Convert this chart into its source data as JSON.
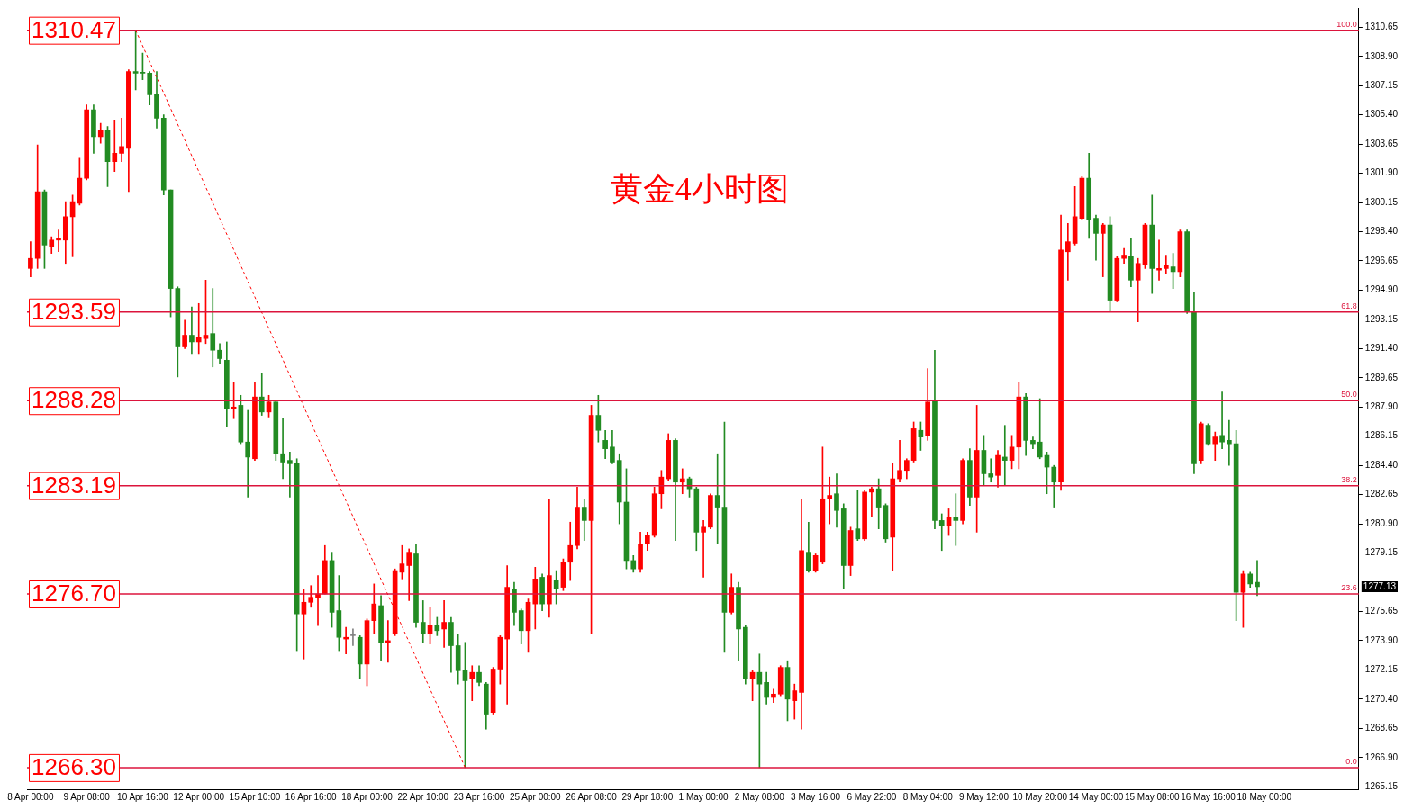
{
  "chart_data": {
    "type": "candlestick",
    "title": "黄金4小时图",
    "categories": [
      "8 Apr 00:00",
      null,
      null,
      null,
      null,
      null,
      null,
      null,
      "9 Apr 08:00",
      null,
      null,
      null,
      null,
      null,
      null,
      null,
      "10 Apr 16:00",
      null,
      null,
      null,
      null,
      null,
      null,
      null,
      "12 Apr 00:00",
      null,
      null,
      null,
      null,
      null,
      null,
      null,
      "15 Apr 10:00",
      null,
      null,
      null,
      null,
      null,
      null,
      null,
      "16 Apr 16:00",
      null,
      null,
      null,
      null,
      null,
      null,
      null,
      "18 Apr 00:00",
      null,
      null,
      null,
      null,
      null,
      null,
      null,
      "22 Apr 10:00",
      null,
      null,
      null,
      null,
      null,
      null,
      null,
      "23 Apr 16:00",
      null,
      null,
      null,
      null,
      null,
      null,
      null,
      "25 Apr 00:00",
      null,
      null,
      null,
      null,
      null,
      null,
      null,
      "26 Apr 08:00",
      null,
      null,
      null,
      null,
      null,
      null,
      null,
      "29 Apr 18:00",
      null,
      null,
      null,
      null,
      null,
      null,
      null,
      "1 May 00:00",
      null,
      null,
      null,
      null,
      null,
      null,
      null,
      "2 May 08:00",
      null,
      null,
      null,
      null,
      null,
      null,
      null,
      "3 May 16:00",
      null,
      null,
      null,
      null,
      null,
      null,
      null,
      "6 May 22:00",
      null,
      null,
      null,
      null,
      null,
      null,
      null,
      "8 May 04:00",
      null,
      null,
      null,
      null,
      null,
      null,
      null,
      "9 May 12:00",
      null,
      null,
      null,
      null,
      null,
      null,
      null,
      "10 May 20:00",
      null,
      null,
      null,
      null,
      null,
      null,
      null,
      "14 May 00:00",
      null,
      null,
      null,
      null,
      null,
      null,
      null,
      "15 May 08:00",
      null,
      null,
      null,
      null,
      null,
      null,
      null,
      "16 May 16:00",
      null,
      null,
      null,
      null,
      null,
      null,
      null,
      "18 May 00:00",
      null,
      null,
      null,
      null,
      null,
      null,
      null,
      null,
      null,
      null,
      null,
      null,
      null
    ],
    "ohlc": [
      [
        1296.2,
        1297.8,
        1295.7,
        1296.8
      ],
      [
        1296.8,
        1303.6,
        1296.2,
        1300.8
      ],
      [
        1300.8,
        1300.9,
        1296.2,
        1297.6
      ],
      [
        1297.5,
        1298.1,
        1297.1,
        1297.9
      ],
      [
        1297.9,
        1298.5,
        1297.2,
        1298.0
      ],
      [
        1297.9,
        1300.2,
        1296.5,
        1299.3
      ],
      [
        1299.3,
        1300.6,
        1296.9,
        1300.2
      ],
      [
        1300.1,
        1302.8,
        1300.0,
        1301.6
      ],
      [
        1301.6,
        1306.0,
        1301.5,
        1305.7
      ],
      [
        1305.7,
        1306.0,
        1303.1,
        1304.1
      ],
      [
        1304.1,
        1304.9,
        1303.7,
        1304.5
      ],
      [
        1304.5,
        1304.7,
        1301.1,
        1302.6
      ],
      [
        1302.6,
        1305.1,
        1302.0,
        1303.1
      ],
      [
        1303.1,
        1305.2,
        1302.6,
        1303.5
      ],
      [
        1303.4,
        1308.1,
        1300.8,
        1308.0
      ],
      [
        1308.0,
        1310.47,
        1306.9,
        1307.9
      ],
      [
        1307.9,
        1309.1,
        1307.5,
        1307.9
      ],
      [
        1307.9,
        1308.0,
        1306.0,
        1306.6
      ],
      [
        1306.6,
        1308.0,
        1304.6,
        1305.2
      ],
      [
        1305.2,
        1305.4,
        1300.6,
        1300.9
      ],
      [
        1300.9,
        1300.9,
        1293.3,
        1295.0
      ],
      [
        1295.0,
        1295.1,
        1289.7,
        1291.5
      ],
      [
        1291.5,
        1293.1,
        1291.4,
        1292.2
      ],
      [
        1292.2,
        1293.9,
        1291.1,
        1291.8
      ],
      [
        1291.8,
        1294.1,
        1291.1,
        1292.1
      ],
      [
        1292.0,
        1295.5,
        1291.7,
        1292.2
      ],
      [
        1292.3,
        1295.0,
        1290.3,
        1291.3
      ],
      [
        1291.3,
        1291.7,
        1290.5,
        1290.8
      ],
      [
        1290.7,
        1291.8,
        1286.7,
        1287.8
      ],
      [
        1287.8,
        1289.4,
        1287.2,
        1287.9
      ],
      [
        1288.0,
        1288.6,
        1285.7,
        1285.8
      ],
      [
        1285.8,
        1287.7,
        1282.5,
        1284.9
      ],
      [
        1284.8,
        1289.4,
        1284.7,
        1288.5
      ],
      [
        1288.5,
        1289.9,
        1287.4,
        1287.6
      ],
      [
        1287.6,
        1288.6,
        1287.3,
        1288.2
      ],
      [
        1288.2,
        1288.3,
        1284.7,
        1285.1
      ],
      [
        1285.1,
        1287.2,
        1283.6,
        1284.6
      ],
      [
        1284.7,
        1285.2,
        1282.5,
        1284.5
      ],
      [
        1284.5,
        1284.8,
        1273.3,
        1275.5
      ],
      [
        1275.5,
        1277.0,
        1272.8,
        1276.2
      ],
      [
        1276.2,
        1277.2,
        1275.9,
        1276.5
      ],
      [
        1276.5,
        1277.8,
        1274.8,
        1276.7
      ],
      [
        1276.7,
        1279.6,
        1276.7,
        1278.7
      ],
      [
        1278.7,
        1279.2,
        1274.7,
        1275.6
      ],
      [
        1275.7,
        1277.8,
        1273.3,
        1274.1
      ],
      [
        1274.0,
        1274.7,
        1273.1,
        1274.1
      ],
      [
        1274.2,
        1274.6,
        1273.6,
        1274.2
      ],
      [
        1274.1,
        1274.2,
        1271.6,
        1272.5
      ],
      [
        1272.5,
        1275.2,
        1271.2,
        1275.1
      ],
      [
        1275.1,
        1277.3,
        1274.3,
        1276.1
      ],
      [
        1276.0,
        1276.6,
        1272.7,
        1273.8
      ],
      [
        1273.8,
        1275.1,
        1272.6,
        1273.9
      ],
      [
        1274.3,
        1278.2,
        1274.2,
        1278.1
      ],
      [
        1278.0,
        1279.6,
        1277.6,
        1278.5
      ],
      [
        1278.4,
        1279.4,
        1276.3,
        1279.2
      ],
      [
        1279.1,
        1279.7,
        1274.7,
        1275.0
      ],
      [
        1275.0,
        1276.3,
        1273.8,
        1274.3
      ],
      [
        1274.3,
        1275.9,
        1273.7,
        1274.8
      ],
      [
        1274.8,
        1275.3,
        1274.2,
        1274.5
      ],
      [
        1274.6,
        1276.3,
        1273.5,
        1275.0
      ],
      [
        1275.0,
        1275.3,
        1272.0,
        1273.6
      ],
      [
        1273.6,
        1274.3,
        1271.3,
        1272.1
      ],
      [
        1272.1,
        1273.8,
        1266.3,
        1271.5
      ],
      [
        1271.6,
        1272.4,
        1270.3,
        1272.0
      ],
      [
        1272.0,
        1272.4,
        1271.2,
        1271.4
      ],
      [
        1271.3,
        1271.4,
        1268.6,
        1269.5
      ],
      [
        1269.6,
        1272.3,
        1269.5,
        1272.2
      ],
      [
        1272.2,
        1274.2,
        1271.3,
        1274.1
      ],
      [
        1274.0,
        1278.4,
        1270.1,
        1277.1
      ],
      [
        1277.0,
        1277.4,
        1274.8,
        1275.6
      ],
      [
        1275.7,
        1275.8,
        1273.7,
        1274.5
      ],
      [
        1274.5,
        1276.4,
        1273.2,
        1276.2
      ],
      [
        1276.1,
        1278.3,
        1274.6,
        1277.6
      ],
      [
        1277.7,
        1277.9,
        1275.7,
        1276.1
      ],
      [
        1276.1,
        1282.4,
        1275.3,
        1277.8
      ],
      [
        1277.5,
        1278.1,
        1276.1,
        1277.0
      ],
      [
        1277.1,
        1278.8,
        1276.9,
        1278.6
      ],
      [
        1278.6,
        1281.0,
        1277.5,
        1279.6
      ],
      [
        1279.6,
        1283.1,
        1279.4,
        1281.9
      ],
      [
        1281.9,
        1282.4,
        1279.9,
        1281.1
      ],
      [
        1281.1,
        1288.0,
        1274.3,
        1287.4
      ],
      [
        1287.4,
        1288.6,
        1285.8,
        1286.5
      ],
      [
        1285.9,
        1286.5,
        1284.8,
        1285.4
      ],
      [
        1285.5,
        1286.5,
        1284.5,
        1284.6
      ],
      [
        1284.7,
        1285.1,
        1280.9,
        1282.2
      ],
      [
        1282.2,
        1284.2,
        1278.2,
        1278.7
      ],
      [
        1278.7,
        1279.0,
        1278.0,
        1278.2
      ],
      [
        1278.2,
        1280.4,
        1278.0,
        1279.7
      ],
      [
        1279.7,
        1280.4,
        1279.3,
        1280.2
      ],
      [
        1280.2,
        1283.1,
        1280.1,
        1282.7
      ],
      [
        1282.7,
        1284.1,
        1281.8,
        1283.7
      ],
      [
        1283.6,
        1286.3,
        1283.5,
        1285.9
      ],
      [
        1285.9,
        1286.0,
        1279.9,
        1283.4
      ],
      [
        1283.4,
        1284.2,
        1282.7,
        1283.6
      ],
      [
        1283.6,
        1283.7,
        1282.5,
        1283.0
      ],
      [
        1283.0,
        1283.1,
        1279.3,
        1280.4
      ],
      [
        1280.4,
        1281.1,
        1277.7,
        1280.7
      ],
      [
        1280.7,
        1282.7,
        1280.6,
        1282.6
      ],
      [
        1282.6,
        1285.1,
        1279.7,
        1281.9
      ],
      [
        1281.9,
        1287.0,
        1273.2,
        1275.6
      ],
      [
        1275.6,
        1277.9,
        1275.5,
        1277.1
      ],
      [
        1277.1,
        1277.4,
        1272.7,
        1274.6
      ],
      [
        1274.7,
        1274.8,
        1271.3,
        1271.6
      ],
      [
        1271.6,
        1272.1,
        1270.3,
        1272.0
      ],
      [
        1272.0,
        1273.1,
        1266.3,
        1271.3
      ],
      [
        1271.4,
        1272.0,
        1270.1,
        1270.5
      ],
      [
        1270.5,
        1271.0,
        1270.2,
        1270.7
      ],
      [
        1270.7,
        1272.4,
        1270.6,
        1272.3
      ],
      [
        1272.3,
        1272.7,
        1269.1,
        1270.4
      ],
      [
        1270.3,
        1271.3,
        1269.2,
        1270.9
      ],
      [
        1270.8,
        1282.4,
        1268.6,
        1279.3
      ],
      [
        1279.2,
        1281.0,
        1278.0,
        1278.1
      ],
      [
        1278.1,
        1279.1,
        1278.0,
        1279.0
      ],
      [
        1278.6,
        1285.5,
        1278.5,
        1282.4
      ],
      [
        1282.4,
        1283.7,
        1280.9,
        1282.6
      ],
      [
        1282.7,
        1283.9,
        1280.7,
        1281.7
      ],
      [
        1281.8,
        1282.1,
        1277.0,
        1278.4
      ],
      [
        1278.4,
        1280.7,
        1277.8,
        1280.5
      ],
      [
        1280.6,
        1282.9,
        1279.9,
        1280.0
      ],
      [
        1280.0,
        1282.9,
        1279.9,
        1282.8
      ],
      [
        1282.8,
        1283.1,
        1281.3,
        1283.0
      ],
      [
        1283.0,
        1283.6,
        1280.6,
        1281.9
      ],
      [
        1282.0,
        1282.1,
        1279.8,
        1280.0
      ],
      [
        1280.1,
        1284.5,
        1278.1,
        1283.6
      ],
      [
        1283.6,
        1285.9,
        1283.4,
        1284.1
      ],
      [
        1284.1,
        1284.8,
        1283.6,
        1284.7
      ],
      [
        1284.7,
        1287.0,
        1284.6,
        1286.6
      ],
      [
        1286.5,
        1287.0,
        1285.3,
        1286.1
      ],
      [
        1286.2,
        1290.2,
        1285.9,
        1288.2
      ],
      [
        1288.3,
        1291.3,
        1280.6,
        1281.1
      ],
      [
        1281.1,
        1281.5,
        1279.3,
        1280.8
      ],
      [
        1280.8,
        1281.8,
        1280.2,
        1281.3
      ],
      [
        1281.3,
        1282.7,
        1279.6,
        1281.1
      ],
      [
        1281.1,
        1284.8,
        1280.9,
        1284.7
      ],
      [
        1284.7,
        1285.4,
        1282.0,
        1282.5
      ],
      [
        1282.5,
        1288.0,
        1280.4,
        1285.3
      ],
      [
        1285.3,
        1286.2,
        1283.2,
        1283.9
      ],
      [
        1283.9,
        1284.8,
        1283.4,
        1283.7
      ],
      [
        1283.8,
        1285.3,
        1283.1,
        1285.0
      ],
      [
        1284.9,
        1286.8,
        1283.2,
        1284.7
      ],
      [
        1284.7,
        1286.2,
        1284.2,
        1285.5
      ],
      [
        1285.5,
        1289.4,
        1284.2,
        1288.5
      ],
      [
        1288.5,
        1288.7,
        1285.0,
        1285.9
      ],
      [
        1285.9,
        1286.1,
        1285.4,
        1285.7
      ],
      [
        1285.8,
        1288.4,
        1284.8,
        1284.9
      ],
      [
        1285.0,
        1285.2,
        1282.7,
        1284.3
      ],
      [
        1284.3,
        1284.4,
        1281.9,
        1283.4
      ],
      [
        1283.4,
        1299.4,
        1282.9,
        1297.3
      ],
      [
        1297.2,
        1298.9,
        1295.5,
        1297.8
      ],
      [
        1297.7,
        1301.1,
        1297.6,
        1299.3
      ],
      [
        1299.2,
        1301.7,
        1299.1,
        1301.6
      ],
      [
        1301.6,
        1303.1,
        1298.0,
        1299.1
      ],
      [
        1299.2,
        1299.4,
        1296.7,
        1298.3
      ],
      [
        1298.3,
        1298.9,
        1295.7,
        1298.8
      ],
      [
        1298.8,
        1299.3,
        1293.6,
        1294.3
      ],
      [
        1294.3,
        1296.9,
        1294.2,
        1296.8
      ],
      [
        1296.8,
        1297.4,
        1296.5,
        1297.0
      ],
      [
        1296.9,
        1298.0,
        1295.1,
        1295.5
      ],
      [
        1295.5,
        1296.8,
        1293.0,
        1296.5
      ],
      [
        1296.4,
        1298.9,
        1296.2,
        1298.8
      ],
      [
        1298.8,
        1300.6,
        1294.7,
        1296.2
      ],
      [
        1296.1,
        1297.9,
        1295.5,
        1296.2
      ],
      [
        1296.2,
        1297.0,
        1295.9,
        1296.4
      ],
      [
        1296.3,
        1297.1,
        1295.0,
        1296.0
      ],
      [
        1296.0,
        1298.5,
        1295.7,
        1298.4
      ],
      [
        1298.4,
        1298.5,
        1293.5,
        1293.6
      ],
      [
        1293.6,
        1294.8,
        1283.9,
        1284.5
      ],
      [
        1284.7,
        1287.0,
        1284.5,
        1286.9
      ],
      [
        1286.8,
        1286.9,
        1285.6,
        1285.7
      ],
      [
        1285.7,
        1286.4,
        1284.7,
        1286.1
      ],
      [
        1286.2,
        1288.8,
        1285.4,
        1285.8
      ],
      [
        1285.9,
        1287.1,
        1284.4,
        1285.7
      ],
      [
        1285.7,
        1286.5,
        1275.1,
        1276.8
      ],
      [
        1276.8,
        1278.1,
        1274.7,
        1277.9
      ],
      [
        1277.9,
        1278.0,
        1277.1,
        1277.3
      ],
      [
        1277.4,
        1278.7,
        1276.6,
        1277.13
      ],
      null,
      null,
      null,
      null,
      null,
      null,
      null,
      null,
      null,
      null,
      null,
      null,
      null,
      null
    ],
    "colors": [
      "#ff0000",
      "#ff0000",
      "#228b22",
      "#ff0000",
      "#ff0000",
      "#ff0000",
      "#ff0000",
      "#ff0000",
      "#ff0000",
      "#228b22",
      "#ff0000",
      "#228b22",
      "#ff0000",
      "#ff0000",
      "#ff0000",
      "#228b22",
      "#228b22",
      "#228b22",
      "#228b22",
      "#228b22",
      "#228b22",
      "#228b22",
      "#ff0000",
      "#228b22",
      "#ff0000",
      "#ff0000",
      "#228b22",
      "#228b22",
      "#228b22",
      "#ff0000",
      "#228b22",
      "#228b22",
      "#ff0000",
      "#228b22",
      "#ff0000",
      "#228b22",
      "#228b22",
      "#228b22",
      "#228b22",
      "#ff0000",
      "#ff0000",
      "#ff0000",
      "#ff0000",
      "#228b22",
      "#228b22",
      "#ff0000",
      "#808080",
      "#228b22",
      "#ff0000",
      "#ff0000",
      "#228b22",
      "#ff0000",
      "#ff0000",
      "#ff0000",
      "#ff0000",
      "#228b22",
      "#228b22",
      "#ff0000",
      "#228b22",
      "#ff0000",
      "#228b22",
      "#228b22",
      "#228b22",
      "#ff0000",
      "#228b22",
      "#228b22",
      "#ff0000",
      "#ff0000",
      "#ff0000",
      "#228b22",
      "#228b22",
      "#ff0000",
      "#ff0000",
      "#228b22",
      "#ff0000",
      "#228b22",
      "#ff0000",
      "#ff0000",
      "#ff0000",
      "#228b22",
      "#ff0000",
      "#228b22",
      "#228b22",
      "#228b22",
      "#228b22",
      "#228b22",
      "#228b22",
      "#ff0000",
      "#ff0000",
      "#ff0000",
      "#ff0000",
      "#ff0000",
      "#228b22",
      "#ff0000",
      "#228b22",
      "#228b22",
      "#ff0000",
      "#ff0000",
      "#228b22",
      "#228b22",
      "#ff0000",
      "#228b22",
      "#228b22",
      "#ff0000",
      "#228b22",
      "#228b22",
      "#ff0000",
      "#ff0000",
      "#228b22",
      "#ff0000",
      "#ff0000",
      "#228b22",
      "#ff0000",
      "#ff0000",
      "#ff0000",
      "#228b22",
      "#228b22",
      "#ff0000",
      "#228b22",
      "#ff0000",
      "#ff0000",
      "#228b22",
      "#228b22",
      "#ff0000",
      "#ff0000",
      "#ff0000",
      "#ff0000",
      "#228b22",
      "#ff0000",
      "#228b22",
      "#228b22",
      "#ff0000",
      "#228b22",
      "#ff0000",
      "#228b22",
      "#ff0000",
      "#228b22",
      "#228b22",
      "#ff0000",
      "#228b22",
      "#ff0000",
      "#ff0000",
      "#228b22",
      "#228b22",
      "#228b22",
      "#228b22",
      "#228b22",
      "#ff0000",
      "#ff0000",
      "#ff0000",
      "#ff0000",
      "#228b22",
      "#228b22",
      "#ff0000",
      "#228b22",
      "#ff0000",
      "#ff0000",
      "#228b22",
      "#ff0000",
      "#ff0000",
      "#228b22",
      "#ff0000",
      "#ff0000",
      "#228b22",
      "#ff0000",
      "#228b22",
      "#228b22",
      "#ff0000",
      "#228b22",
      "#ff0000",
      "#228b22",
      "#228b22",
      "#228b22",
      "#ff0000",
      "#228b22",
      "#228b22",
      null,
      null,
      null,
      null,
      null,
      null,
      null,
      null,
      null,
      null,
      null,
      null,
      null,
      null
    ],
    "series": [
      {
        "type": "line",
        "color": "#ff0000",
        "line_style": "dashed",
        "values": [
          null,
          null,
          null,
          null,
          null,
          null,
          null,
          null,
          null,
          null,
          null,
          null,
          null,
          null,
          null,
          1310.47,
          null,
          null,
          null,
          null,
          null,
          null,
          null,
          null,
          null,
          null,
          null,
          null,
          null,
          null,
          null,
          null,
          null,
          null,
          null,
          null,
          null,
          null,
          null,
          null,
          null,
          null,
          null,
          null,
          null,
          null,
          null,
          null,
          null,
          null,
          null,
          null,
          null,
          null,
          null,
          null,
          null,
          null,
          null,
          null,
          null,
          null,
          1266.3,
          null,
          null,
          null,
          null,
          null,
          null,
          null,
          null,
          null,
          null,
          null,
          null,
          null,
          null,
          null,
          null,
          null,
          null,
          null,
          null,
          null,
          null,
          null,
          null,
          null,
          null,
          null,
          null,
          null,
          null,
          null,
          null,
          null,
          null,
          null,
          null,
          null,
          null,
          null,
          null,
          null,
          null,
          null,
          null,
          null,
          null,
          null,
          null,
          null,
          null,
          null,
          null,
          null,
          null,
          null,
          null,
          null,
          null,
          null,
          null,
          null,
          null,
          null,
          null,
          null,
          null,
          null,
          null,
          null,
          null,
          null,
          null,
          null,
          null,
          null,
          null,
          null,
          null,
          null,
          null,
          null,
          null,
          null,
          null,
          null,
          null,
          null,
          null,
          null,
          null,
          null,
          null,
          null,
          null,
          null,
          null,
          null,
          null,
          null,
          null,
          null,
          null,
          null,
          null,
          null,
          null,
          null,
          null,
          null,
          null,
          null,
          null,
          null,
          null,
          null,
          null,
          null,
          null,
          null,
          null,
          null,
          null,
          null,
          null,
          null,
          null,
          null
        ]
      }
    ],
    "ylim": [
      1265.0,
      1311.8
    ],
    "yticks": [
      {
        "value": 1265.15,
        "label": "1265.15"
      },
      {
        "value": 1266.9,
        "label": "1266.90"
      },
      {
        "value": 1268.65,
        "label": "1268.65"
      },
      {
        "value": 1270.4,
        "label": "1270.40"
      },
      {
        "value": 1272.15,
        "label": "1272.15"
      },
      {
        "value": 1273.9,
        "label": "1273.90"
      },
      {
        "value": 1275.65,
        "label": "1275.65"
      },
      {
        "value": 1279.15,
        "label": "1279.15"
      },
      {
        "value": 1280.9,
        "label": "1280.90"
      },
      {
        "value": 1282.65,
        "label": "1282.65"
      },
      {
        "value": 1284.4,
        "label": "1284.40"
      },
      {
        "value": 1286.15,
        "label": "1286.15"
      },
      {
        "value": 1287.9,
        "label": "1287.90"
      },
      {
        "value": 1289.65,
        "label": "1289.65"
      },
      {
        "value": 1291.4,
        "label": "1291.40"
      },
      {
        "value": 1293.15,
        "label": "1293.15"
      },
      {
        "value": 1294.9,
        "label": "1294.90"
      },
      {
        "value": 1296.65,
        "label": "1296.65"
      },
      {
        "value": 1298.4,
        "label": "1298.40"
      },
      {
        "value": 1300.15,
        "label": "1300.15"
      },
      {
        "value": 1301.9,
        "label": "1301.90"
      },
      {
        "value": 1303.65,
        "label": "1303.65"
      },
      {
        "value": 1305.4,
        "label": "1305.40"
      },
      {
        "value": 1307.15,
        "label": "1307.15"
      },
      {
        "value": 1308.9,
        "label": "1308.90"
      },
      {
        "value": 1310.65,
        "label": "1310.65"
      }
    ],
    "ref_lines": [
      {
        "axis": "y",
        "value": 1310.47,
        "label": "1310.47",
        "color": "#dc143c"
      },
      {
        "axis": "y",
        "value": 1293.59,
        "label": "1293.59",
        "color": "#dc143c"
      },
      {
        "axis": "y",
        "value": 1288.28,
        "label": "1288.28",
        "color": "#dc143c"
      },
      {
        "axis": "y",
        "value": 1283.19,
        "label": "1283.19",
        "color": "#dc143c"
      },
      {
        "axis": "y",
        "value": 1276.7,
        "label": "1276.70",
        "color": "#dc143c"
      },
      {
        "axis": "y",
        "value": 1266.3,
        "label": "1266.30",
        "color": "#dc143c"
      }
    ],
    "annotations": [
      {
        "text": "100.0",
        "y": 1310.47
      },
      {
        "text": "61.8",
        "y": 1293.59
      },
      {
        "text": "50.0",
        "y": 1288.28
      },
      {
        "text": "38.2",
        "y": 1283.19
      },
      {
        "text": "23.6",
        "y": 1276.7
      },
      {
        "text": "0.0",
        "y": 1266.3
      },
      "1277.13"
    ]
  }
}
